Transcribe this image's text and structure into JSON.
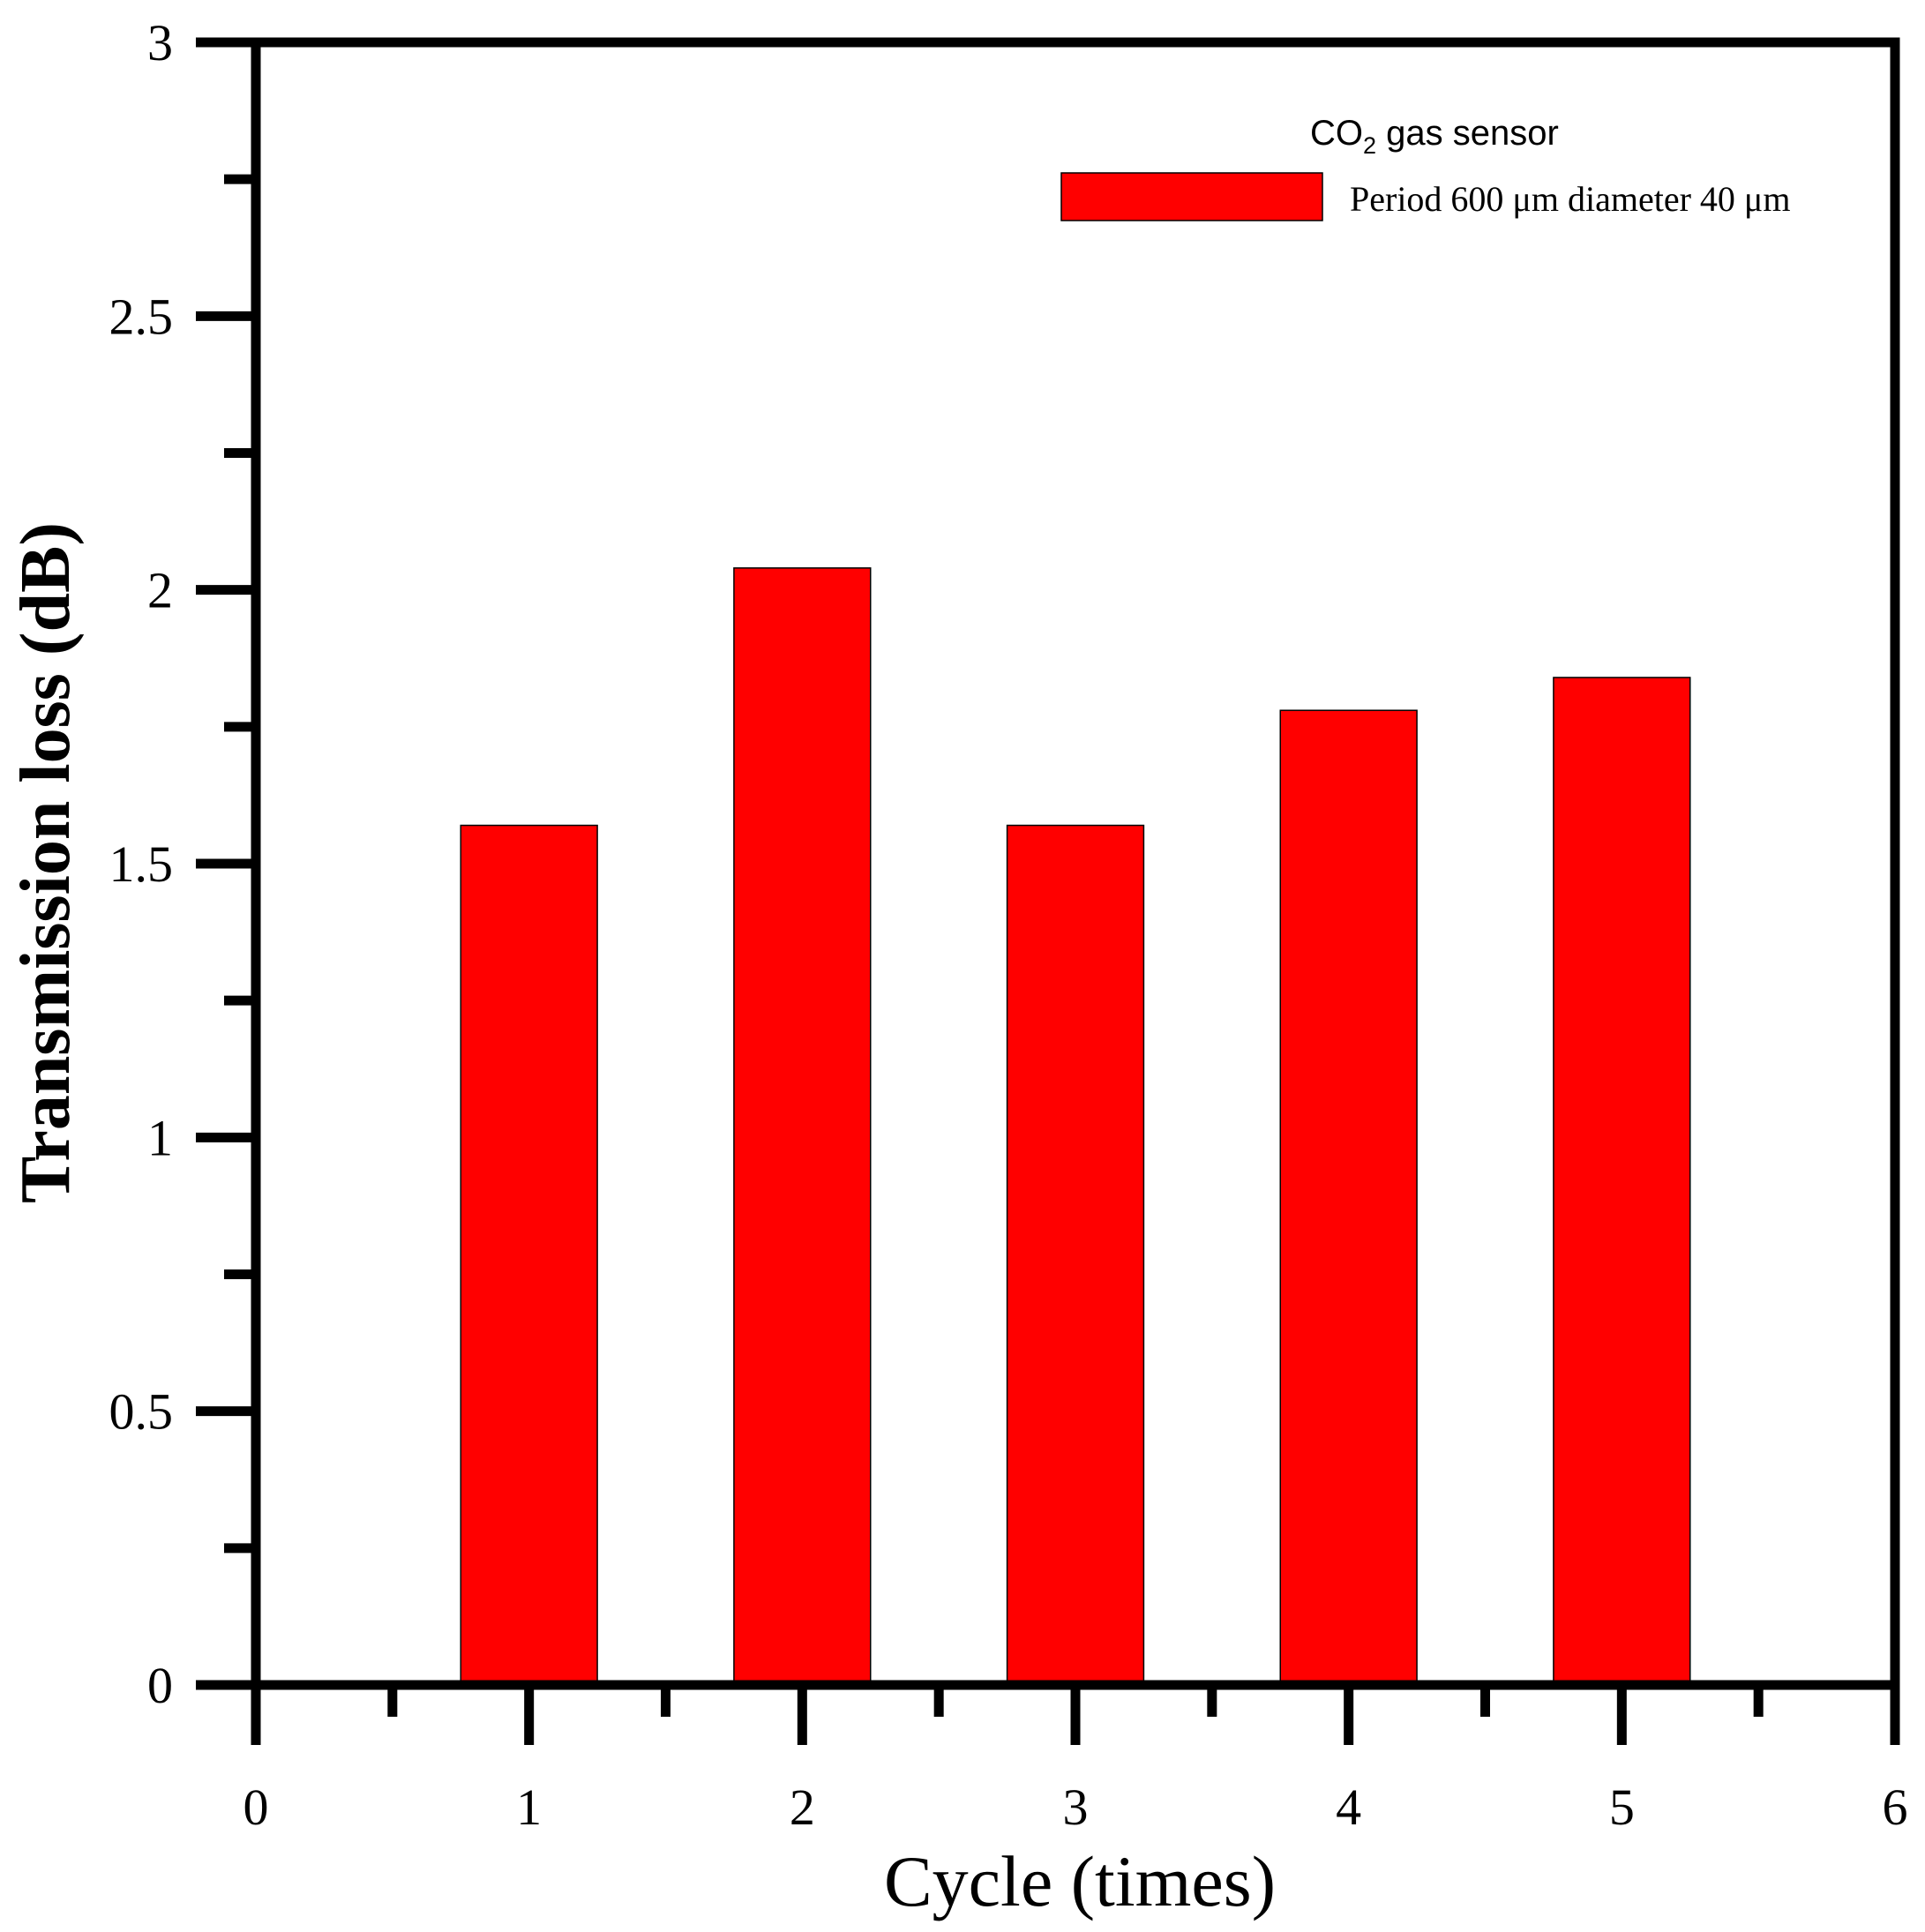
{
  "chart_data": {
    "type": "bar",
    "x": [
      1,
      2,
      3,
      4,
      5
    ],
    "categories": [
      "1",
      "2",
      "3",
      "4",
      "5"
    ],
    "series": [
      {
        "name": "Period 600 μm diameter 40 μm",
        "values": [
          1.57,
          2.04,
          1.57,
          1.78,
          1.84
        ]
      }
    ],
    "xlabel": "Cycle (times)",
    "ylabel": "Transmission loss (dB)",
    "xlim": [
      0,
      6
    ],
    "ylim": [
      0,
      3
    ],
    "xticks": [
      "0",
      "1",
      "2",
      "3",
      "4",
      "5",
      "6"
    ],
    "yticks": [
      "0",
      "0.5",
      "1",
      "1.5",
      "2",
      "2.5",
      "3"
    ],
    "bar_width": 0.5,
    "legend": {
      "title_main": "CO",
      "title_sub": "2",
      "title_rest": " gas sensor",
      "label": "Period 600 μm diameter 40 μm",
      "placement": "top-right"
    },
    "grid": false,
    "bar_color": "#ff0000"
  }
}
